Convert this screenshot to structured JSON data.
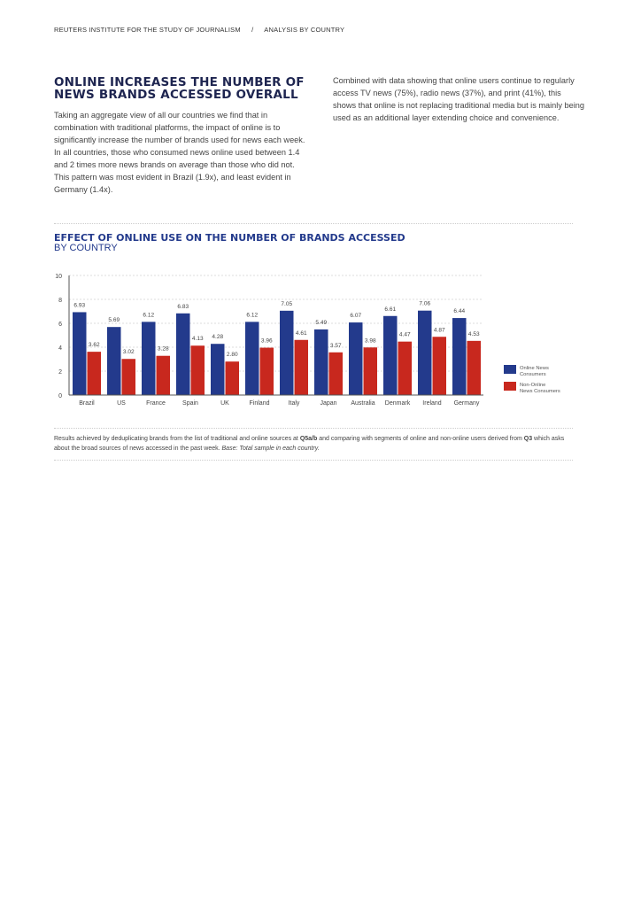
{
  "header": {
    "org": "REUTERS INSTITUTE FOR THE STUDY OF JOURNALISM",
    "separator": "/",
    "section": "ANALYSIS BY COUNTRY"
  },
  "article": {
    "title": "ONLINE INCREASES THE NUMBER OF NEWS BRANDS ACCESSED OVERALL",
    "para1": "Taking an aggregate view of all our countries we find that in combination with traditional platforms, the impact of online is to significantly increase the number of brands used for news each week. In all countries, those who consumed news online used between 1.4 and 2 times more news brands on average than those who did not. This pattern was most evident in Brazil (1.9x), and least evident in Germany (1.4x).",
    "para2": "Combined with data showing that online users continue to regularly access TV news (75%), radio news (37%), and print (41%), this shows that online is not replacing traditional media but is mainly being used as an additional layer extending choice and convenience."
  },
  "chart_data": {
    "type": "bar",
    "title": "EFFECT OF ONLINE USE ON THE NUMBER OF BRANDS ACCESSED",
    "subtitle": "BY COUNTRY",
    "categories": [
      "Brazil",
      "US",
      "France",
      "Spain",
      "UK",
      "Finland",
      "Italy",
      "Japan",
      "Australia",
      "Denmark",
      "Ireland",
      "Germany"
    ],
    "series": [
      {
        "name": "Online News Consumers",
        "color": "#233a8c",
        "values": [
          6.93,
          5.69,
          6.12,
          6.83,
          4.28,
          6.12,
          7.05,
          5.49,
          6.07,
          6.61,
          7.06,
          6.44
        ],
        "labels": [
          "6.93",
          "5.69",
          "6.12",
          "6.83",
          "4.28",
          "6.12",
          "7.05",
          "5.49",
          "6.07",
          "6.61",
          "7.06",
          "6.44"
        ]
      },
      {
        "name": "Non-Online News Consumers",
        "color": "#c8281e",
        "values": [
          3.62,
          3.02,
          3.28,
          4.13,
          2.8,
          3.96,
          4.61,
          3.57,
          3.98,
          4.47,
          4.87,
          4.53
        ],
        "labels": [
          "3.62",
          "3.02",
          "3.28",
          "4.13",
          "2.80",
          "3.96",
          "4.61",
          "3.57",
          "3.98",
          "4.47",
          "4.87",
          "4.53"
        ]
      }
    ],
    "legend_lines": [
      [
        "Online News",
        "Consumers"
      ],
      [
        "Non-Online",
        "News Consumers"
      ]
    ],
    "ylim": [
      0,
      10
    ],
    "yticks": [
      "0",
      "2",
      "4",
      "6",
      "8",
      "10"
    ],
    "grid": true,
    "legend": "right"
  },
  "note": {
    "a": "Results achieved by deduplicating brands from the list of traditional and online sources at ",
    "b": "Q5a/b",
    "c": " and comparing with segments of online and non-online users derived from ",
    "d": "Q3",
    "e": " which asks about the broad sources of news accessed in the past week. ",
    "f": "Base: Total sample in each country."
  }
}
